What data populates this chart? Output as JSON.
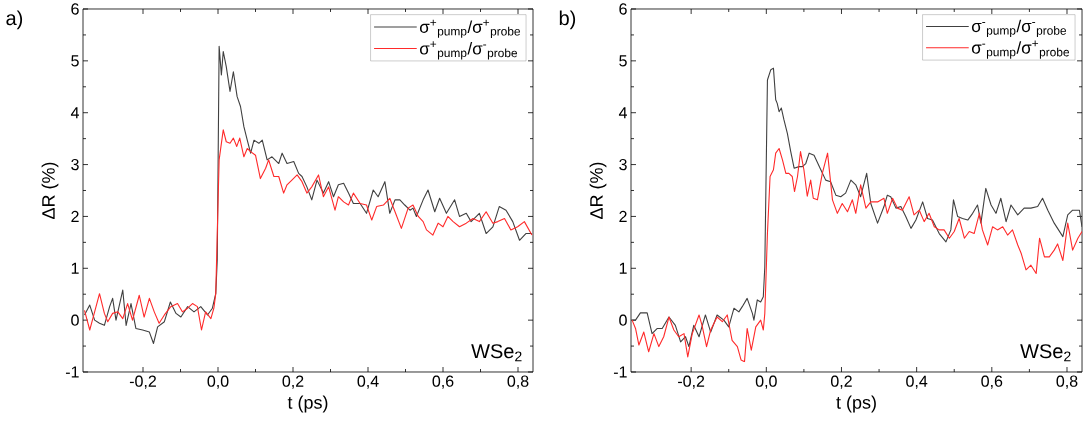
{
  "chart_data": [
    {
      "type": "line",
      "xlabel": "t (ps)",
      "ylabel": "ΔR (%)",
      "legend": "top right",
      "annotations": [
        "a)",
        "WSe$_{2}$"
      ],
      "xlim": [
        -0.36,
        0.84
      ],
      "ylim": [
        -1,
        6
      ],
      "xticks": [
        {
          "value": -0.2,
          "label": "-0,2"
        },
        {
          "value": 0,
          "label": "0,0"
        },
        {
          "value": 0.2,
          "label": "0,2"
        },
        {
          "value": 0.4,
          "label": "0,4"
        },
        {
          "value": 0.6,
          "label": "0,6"
        },
        {
          "value": 0.8,
          "label": "0,8"
        }
      ],
      "yticks": [
        -1,
        0,
        1,
        2,
        3,
        4,
        5,
        6
      ],
      "series": [
        {
          "name": "σ$^{+}$$_{pump}$/σ$^{+}$$_{probe}$",
          "color": "#404040",
          "x": [
            -0.356,
            -0.342,
            -0.329,
            -0.316,
            -0.303,
            -0.289,
            -0.281,
            -0.272,
            -0.254,
            -0.245,
            -0.232,
            -0.219,
            -0.201,
            -0.183,
            -0.172,
            -0.161,
            -0.143,
            -0.127,
            -0.112,
            -0.099,
            -0.081,
            -0.064,
            -0.046,
            -0.028,
            -0.015,
            -0.006,
            -0.002,
            0.003,
            0.009,
            0.014,
            0.022,
            0.032,
            0.041,
            0.051,
            0.06,
            0.069,
            0.078,
            0.087,
            0.096,
            0.109,
            0.118,
            0.131,
            0.144,
            0.162,
            0.171,
            0.184,
            0.202,
            0.215,
            0.224,
            0.237,
            0.25,
            0.264,
            0.281,
            0.295,
            0.308,
            0.321,
            0.335,
            0.348,
            0.361,
            0.379,
            0.396,
            0.414,
            0.427,
            0.445,
            0.458,
            0.472,
            0.485,
            0.498,
            0.512,
            0.52,
            0.529,
            0.547,
            0.56,
            0.578,
            0.591,
            0.609,
            0.631,
            0.644,
            0.662,
            0.675,
            0.697,
            0.715,
            0.733,
            0.75,
            0.768,
            0.786,
            0.804,
            0.821,
            0.837
          ],
          "values": [
            0.1,
            0.29,
            0.0,
            -0.06,
            -0.1,
            0.26,
            0.42,
            0.0,
            0.58,
            -0.1,
            0.32,
            -0.16,
            -0.19,
            -0.23,
            -0.45,
            -0.13,
            -0.03,
            0.35,
            0.13,
            0.06,
            0.26,
            0.16,
            0.26,
            0.1,
            0.23,
            0.51,
            1.16,
            5.28,
            4.73,
            5.18,
            4.89,
            4.41,
            4.79,
            4.31,
            4.12,
            3.73,
            3.47,
            3.22,
            3.47,
            3.41,
            3.47,
            3.09,
            3.15,
            3.02,
            3.22,
            3.02,
            3.06,
            2.83,
            2.77,
            2.57,
            2.32,
            2.7,
            2.45,
            2.67,
            2.38,
            2.61,
            2.64,
            2.45,
            2.25,
            2.25,
            2.06,
            2.51,
            2.38,
            2.67,
            2.06,
            2.32,
            2.32,
            2.22,
            2.12,
            2.16,
            2.0,
            2.32,
            2.51,
            2.09,
            2.35,
            2.06,
            2.32,
            2.0,
            2.06,
            1.9,
            2.06,
            1.67,
            1.8,
            2.19,
            2.12,
            1.9,
            1.54,
            1.67,
            1.67
          ]
        },
        {
          "name": "σ$^{+}$$_{pump}$/σ$^{-}$$_{probe}$",
          "color": "#ff2a2a",
          "x": [
            -0.356,
            -0.342,
            -0.329,
            -0.316,
            -0.303,
            -0.294,
            -0.281,
            -0.267,
            -0.254,
            -0.241,
            -0.228,
            -0.21,
            -0.197,
            -0.183,
            -0.17,
            -0.157,
            -0.143,
            -0.126,
            -0.108,
            -0.095,
            -0.081,
            -0.068,
            -0.055,
            -0.044,
            -0.033,
            -0.019,
            -0.011,
            -0.006,
            -0.002,
            0.003,
            0.009,
            0.014,
            0.022,
            0.032,
            0.041,
            0.05,
            0.058,
            0.069,
            0.078,
            0.087,
            0.1,
            0.113,
            0.127,
            0.135,
            0.149,
            0.162,
            0.175,
            0.184,
            0.197,
            0.211,
            0.224,
            0.237,
            0.25,
            0.268,
            0.281,
            0.295,
            0.312,
            0.321,
            0.335,
            0.348,
            0.361,
            0.379,
            0.396,
            0.41,
            0.423,
            0.441,
            0.458,
            0.472,
            0.489,
            0.507,
            0.52,
            0.534,
            0.547,
            0.556,
            0.573,
            0.587,
            0.6,
            0.613,
            0.627,
            0.644,
            0.662,
            0.68,
            0.697,
            0.715,
            0.733,
            0.746,
            0.764,
            0.781,
            0.799,
            0.817,
            0.837
          ],
          "values": [
            0.19,
            -0.19,
            0.16,
            0.51,
            0.13,
            -0.03,
            0.13,
            0.16,
            0.03,
            0.32,
            0.0,
            0.48,
            0.06,
            0.42,
            0.16,
            -0.06,
            0.1,
            0.26,
            0.32,
            0.16,
            0.23,
            0.32,
            0.26,
            -0.19,
            0.16,
            0.03,
            0.23,
            0.51,
            1.67,
            3.09,
            3.41,
            3.67,
            3.44,
            3.41,
            3.51,
            3.35,
            3.51,
            3.15,
            3.31,
            3.25,
            3.18,
            2.73,
            2.93,
            3.09,
            2.77,
            2.77,
            2.45,
            2.61,
            2.7,
            2.8,
            2.67,
            2.45,
            2.57,
            2.8,
            2.38,
            2.57,
            2.12,
            2.38,
            2.28,
            2.22,
            2.45,
            2.25,
            2.22,
            1.93,
            2.19,
            2.22,
            2.35,
            2.09,
            1.77,
            2.16,
            2.22,
            2.0,
            1.9,
            1.74,
            1.64,
            1.87,
            1.8,
            2.0,
            1.9,
            1.8,
            1.87,
            1.96,
            1.9,
            2.09,
            1.87,
            1.9,
            1.96,
            1.74,
            1.8,
            1.9,
            1.64
          ]
        }
      ]
    },
    {
      "type": "line",
      "xlabel": "t (ps)",
      "ylabel": "ΔR (%)",
      "legend": "top right",
      "annotations": [
        "b)",
        "WSe$_{2}$"
      ],
      "xlim": [
        -0.36,
        0.84
      ],
      "ylim": [
        -1,
        6
      ],
      "xticks": [
        {
          "value": -0.2,
          "label": "-0,2"
        },
        {
          "value": 0,
          "label": "0,0"
        },
        {
          "value": 0.2,
          "label": "0,2"
        },
        {
          "value": 0.4,
          "label": "0,4"
        },
        {
          "value": 0.6,
          "label": "0,6"
        },
        {
          "value": 0.8,
          "label": "0,8"
        }
      ],
      "yticks": [
        -1,
        0,
        1,
        2,
        3,
        4,
        5,
        6
      ],
      "series": [
        {
          "name": "σ$^{-}$$_{pump}$/σ$^{-}$$_{probe}$",
          "color": "#404040",
          "x": [
            -0.357,
            -0.348,
            -0.335,
            -0.317,
            -0.304,
            -0.29,
            -0.277,
            -0.259,
            -0.242,
            -0.228,
            -0.215,
            -0.206,
            -0.193,
            -0.179,
            -0.162,
            -0.148,
            -0.131,
            -0.113,
            -0.1,
            -0.086,
            -0.073,
            -0.064,
            -0.051,
            -0.037,
            -0.033,
            -0.024,
            -0.015,
            -0.008,
            -0.004,
            0.003,
            0.012,
            0.019,
            0.025,
            0.029,
            0.034,
            0.04,
            0.047,
            0.056,
            0.065,
            0.074,
            0.087,
            0.096,
            0.105,
            0.114,
            0.127,
            0.145,
            0.158,
            0.171,
            0.185,
            0.198,
            0.211,
            0.225,
            0.238,
            0.251,
            0.267,
            0.278,
            0.296,
            0.313,
            0.322,
            0.331,
            0.345,
            0.358,
            0.371,
            0.385,
            0.398,
            0.416,
            0.429,
            0.442,
            0.46,
            0.478,
            0.491,
            0.498,
            0.509,
            0.522,
            0.536,
            0.549,
            0.562,
            0.571,
            0.584,
            0.598,
            0.611,
            0.624,
            0.638,
            0.651,
            0.669,
            0.686,
            0.704,
            0.722,
            0.735,
            0.749,
            0.766,
            0.789,
            0.802,
            0.815,
            0.833,
            0.84
          ],
          "values": [
            0.0,
            0.0,
            0.14,
            0.14,
            -0.26,
            -0.16,
            -0.16,
            0.06,
            -0.1,
            -0.42,
            -0.32,
            -0.51,
            -0.1,
            -0.32,
            0.1,
            -0.23,
            0.1,
            0.0,
            -0.13,
            0.23,
            0.16,
            0.26,
            0.42,
            0.13,
            0.0,
            0.39,
            0.35,
            0.45,
            1.03,
            4.63,
            4.83,
            4.86,
            4.25,
            4.18,
            4.02,
            4.09,
            3.86,
            3.6,
            3.25,
            2.93,
            2.96,
            2.96,
            3.02,
            3.22,
            3.18,
            2.9,
            2.7,
            2.67,
            2.41,
            2.38,
            2.45,
            2.7,
            2.61,
            2.38,
            2.83,
            2.25,
            1.87,
            2.19,
            2.41,
            2.38,
            2.16,
            2.19,
            2.0,
            1.77,
            1.93,
            2.28,
            1.96,
            1.93,
            1.67,
            1.51,
            1.74,
            2.32,
            2.0,
            1.96,
            1.93,
            2.06,
            2.22,
            1.87,
            2.54,
            2.22,
            2.06,
            2.35,
            1.9,
            2.22,
            2.03,
            2.16,
            2.16,
            2.19,
            2.35,
            2.12,
            1.87,
            1.61,
            2.03,
            2.12,
            2.12,
            1.8
          ]
        },
        {
          "name": "σ$^{-}$$_{pump}$/σ$^{+}$$_{probe}$",
          "color": "#ff2a2a",
          "x": [
            -0.357,
            -0.348,
            -0.339,
            -0.326,
            -0.313,
            -0.299,
            -0.286,
            -0.273,
            -0.259,
            -0.246,
            -0.233,
            -0.219,
            -0.209,
            -0.197,
            -0.179,
            -0.171,
            -0.159,
            -0.148,
            -0.131,
            -0.117,
            -0.104,
            -0.091,
            -0.077,
            -0.067,
            -0.058,
            -0.051,
            -0.04,
            -0.028,
            -0.015,
            -0.008,
            -0.004,
            0.003,
            0.01,
            0.019,
            0.025,
            0.034,
            0.043,
            0.052,
            0.06,
            0.069,
            0.075,
            0.083,
            0.091,
            0.1,
            0.109,
            0.118,
            0.125,
            0.136,
            0.149,
            0.163,
            0.176,
            0.189,
            0.202,
            0.216,
            0.229,
            0.238,
            0.251,
            0.265,
            0.278,
            0.296,
            0.313,
            0.322,
            0.336,
            0.349,
            0.362,
            0.38,
            0.393,
            0.407,
            0.42,
            0.433,
            0.447,
            0.46,
            0.473,
            0.487,
            0.5,
            0.513,
            0.527,
            0.54,
            0.553,
            0.567,
            0.575,
            0.589,
            0.602,
            0.615,
            0.629,
            0.642,
            0.655,
            0.669,
            0.678,
            0.691,
            0.704,
            0.718,
            0.727,
            0.74,
            0.753,
            0.766,
            0.775,
            0.789,
            0.802,
            0.815,
            0.829,
            0.84
          ],
          "values": [
            0.0,
            -0.16,
            -0.48,
            -0.23,
            -0.61,
            -0.26,
            -0.51,
            -0.32,
            0.06,
            -0.19,
            -0.32,
            -0.26,
            -0.71,
            -0.26,
            0.1,
            -0.1,
            -0.51,
            -0.19,
            0.06,
            -0.03,
            0.1,
            -0.39,
            -0.51,
            -0.77,
            -0.8,
            -0.16,
            -0.58,
            -0.13,
            0.0,
            -0.19,
            0.13,
            1.67,
            2.77,
            2.9,
            3.22,
            3.31,
            3.09,
            2.83,
            2.83,
            2.77,
            2.48,
            2.77,
            3.25,
            2.9,
            2.39,
            2.7,
            2.35,
            2.32,
            2.83,
            3.22,
            2.32,
            2.06,
            2.25,
            2.09,
            2.32,
            2.06,
            2.61,
            2.16,
            2.28,
            2.28,
            2.35,
            2.06,
            2.35,
            2.16,
            2.12,
            2.38,
            2.03,
            2.12,
            1.9,
            2.06,
            1.8,
            1.74,
            1.74,
            1.58,
            1.71,
            1.96,
            1.58,
            1.71,
            1.67,
            2.06,
            1.74,
            1.45,
            1.8,
            1.74,
            1.8,
            1.64,
            1.74,
            1.45,
            1.29,
            0.97,
            1.06,
            0.9,
            1.58,
            1.22,
            1.22,
            1.35,
            1.47,
            1.15,
            1.87,
            1.35,
            1.58,
            1.71
          ]
        }
      ]
    }
  ]
}
